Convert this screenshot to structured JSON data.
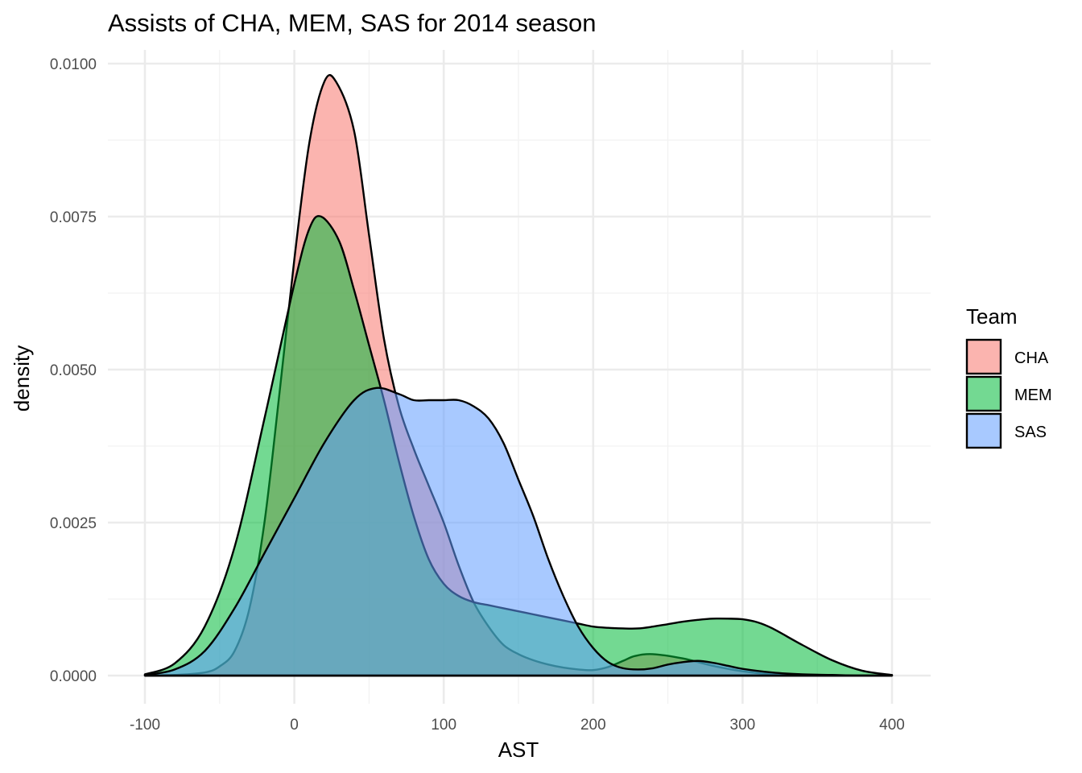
{
  "chart_data": {
    "type": "area",
    "title": "Assists of CHA, MEM, SAS for 2014 season",
    "xlabel": "AST",
    "ylabel": "density",
    "xlim": [
      -100,
      400
    ],
    "ylim": [
      0,
      0.01
    ],
    "x_ticks": [
      -100,
      0,
      100,
      200,
      300,
      400
    ],
    "x_tick_labels": [
      "-100",
      "0",
      "100",
      "200",
      "300",
      "400"
    ],
    "y_ticks": [
      0,
      0.0025,
      0.005,
      0.0075,
      0.01
    ],
    "y_tick_labels": [
      "0.0000",
      "0.0025",
      "0.0050",
      "0.0075",
      "0.0100"
    ],
    "grid": true,
    "legend": {
      "title": "Team",
      "position": "right"
    },
    "series": [
      {
        "name": "CHA",
        "color": "#F8766D",
        "x": [
          -100,
          -80,
          -60,
          -50,
          -40,
          -30,
          -20,
          -10,
          0,
          10,
          20,
          28,
          40,
          50,
          60,
          70,
          80,
          90,
          100,
          110,
          120,
          130,
          140,
          150,
          160,
          170,
          180,
          190,
          200,
          210,
          220,
          228,
          240,
          260,
          280,
          300,
          320,
          340,
          360,
          380,
          400
        ],
        "y": [
          0.0,
          1e-05,
          5e-05,
          0.00015,
          0.0004,
          0.0011,
          0.0025,
          0.0046,
          0.0068,
          0.0087,
          0.0097,
          0.0097,
          0.0089,
          0.0072,
          0.0055,
          0.0044,
          0.0037,
          0.0031,
          0.0025,
          0.0018,
          0.0012,
          0.0008,
          0.0005,
          0.00035,
          0.00025,
          0.00018,
          0.00013,
          0.0001,
          9e-05,
          0.00014,
          0.00024,
          0.00032,
          0.00035,
          0.00028,
          0.00016,
          7e-05,
          2e-05,
          1e-05,
          0.0,
          0.0,
          0.0
        ]
      },
      {
        "name": "MEM",
        "color": "#00BA38",
        "x": [
          -100,
          -80,
          -60,
          -40,
          -20,
          0,
          10,
          18,
          30,
          40,
          50,
          60,
          70,
          80,
          90,
          100,
          110,
          120,
          130,
          140,
          150,
          160,
          170,
          180,
          190,
          200,
          210,
          220,
          230,
          240,
          250,
          260,
          270,
          280,
          290,
          300,
          310,
          320,
          340,
          360,
          380,
          400
        ],
        "y": [
          2e-05,
          0.0002,
          0.0008,
          0.0021,
          0.0042,
          0.0064,
          0.0073,
          0.0075,
          0.0071,
          0.0063,
          0.0054,
          0.0045,
          0.0035,
          0.0026,
          0.0019,
          0.0015,
          0.0013,
          0.0012,
          0.00115,
          0.0011,
          0.00105,
          0.001,
          0.00095,
          0.0009,
          0.00085,
          0.0008,
          0.00078,
          0.00077,
          0.00077,
          0.0008,
          0.00084,
          0.00088,
          0.00091,
          0.00093,
          0.00093,
          0.00092,
          0.00087,
          0.00077,
          0.0005,
          0.00025,
          8e-05,
          1e-05
        ]
      },
      {
        "name": "SAS",
        "color": "#619CFF",
        "x": [
          -100,
          -80,
          -60,
          -40,
          -20,
          0,
          20,
          40,
          55,
          70,
          80,
          90,
          100,
          110,
          120,
          130,
          140,
          150,
          160,
          170,
          180,
          190,
          200,
          210,
          220,
          230,
          240,
          250,
          260,
          270,
          280,
          290,
          300,
          320,
          340,
          360,
          380,
          400
        ],
        "y": [
          1e-05,
          0.0001,
          0.0004,
          0.0011,
          0.002,
          0.0029,
          0.0038,
          0.0045,
          0.0047,
          0.0046,
          0.0045,
          0.0045,
          0.0045,
          0.0045,
          0.0044,
          0.0042,
          0.0038,
          0.0032,
          0.0026,
          0.0019,
          0.0013,
          0.0008,
          0.00045,
          0.00022,
          0.00012,
          0.0001,
          0.00012,
          0.00018,
          0.00022,
          0.00024,
          0.00021,
          0.00016,
          0.00011,
          5e-05,
          2e-05,
          1e-05,
          0.0,
          0.0
        ]
      }
    ]
  }
}
